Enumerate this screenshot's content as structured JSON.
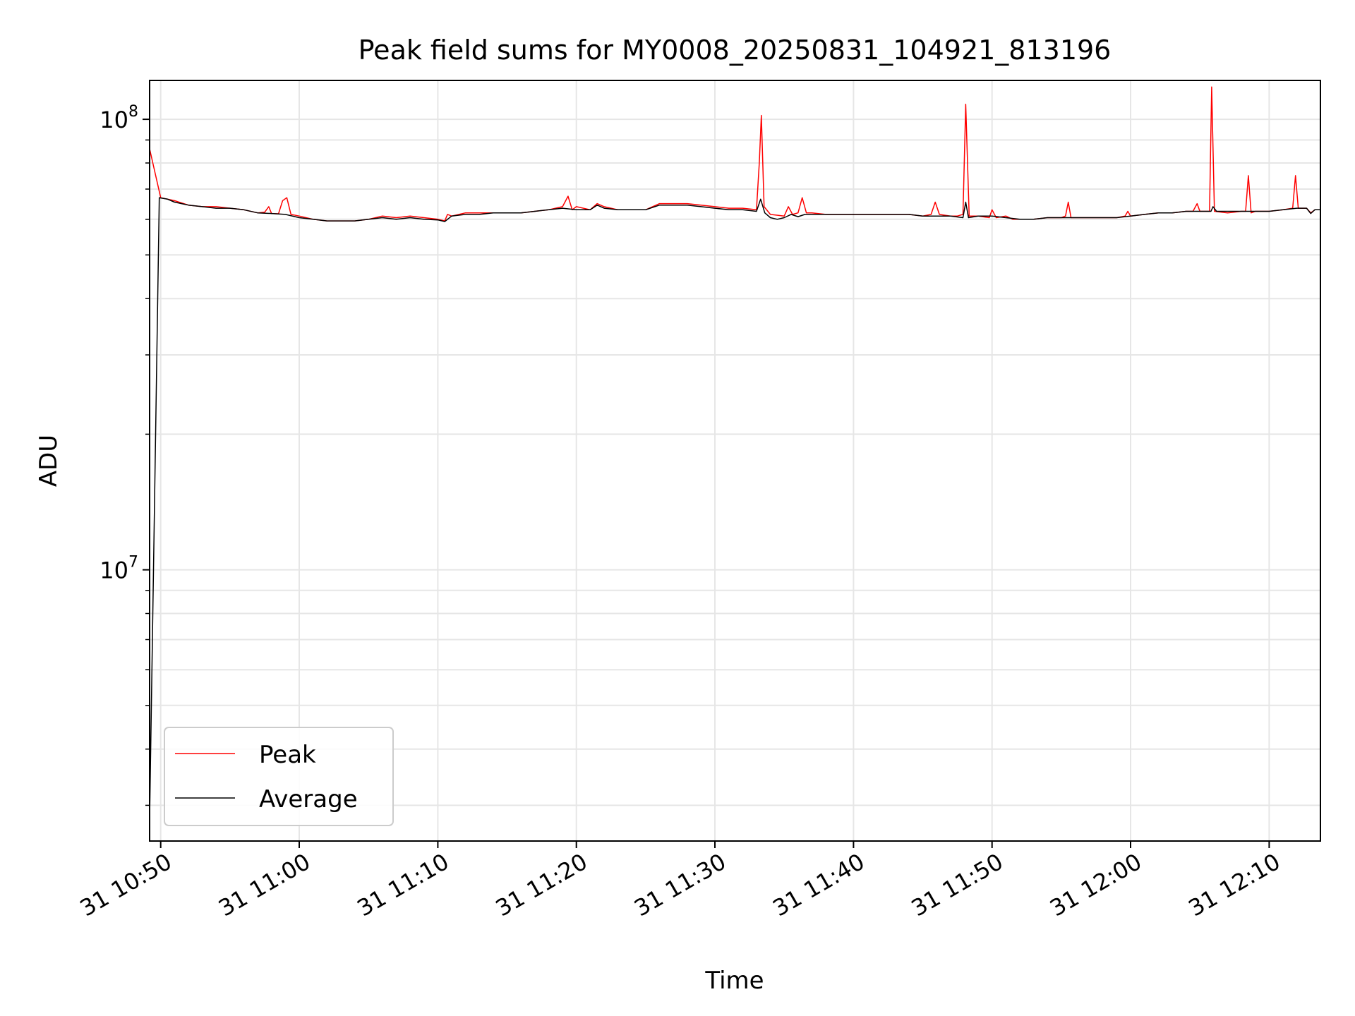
{
  "chart_data": {
    "type": "line",
    "title": "Peak field sums for MY0008_20250831_104921_813196",
    "xlabel": "Time",
    "ylabel": "ADU",
    "yscale": "log",
    "grid": true,
    "legend_placement": "lower-left",
    "xlim_minutes": [
      -0.8,
      83.7
    ],
    "ylim": [
      2500000,
      122000000
    ],
    "x_ticks": [
      {
        "minute": 0,
        "label": "31 10:50"
      },
      {
        "minute": 10,
        "label": "31 11:00"
      },
      {
        "minute": 20,
        "label": "31 11:10"
      },
      {
        "minute": 30,
        "label": "31 11:20"
      },
      {
        "minute": 40,
        "label": "31 11:30"
      },
      {
        "minute": 50,
        "label": "31 11:40"
      },
      {
        "minute": 60,
        "label": "31 11:50"
      },
      {
        "minute": 70,
        "label": "31 12:00"
      },
      {
        "minute": 80,
        "label": "31 12:10"
      }
    ],
    "y_major_ticks": [
      {
        "value": 10000000,
        "base": "10",
        "exp": "7"
      },
      {
        "value": 100000000,
        "base": "10",
        "exp": "8"
      }
    ],
    "y_minor_ticks": [
      3000000,
      4000000,
      5000000,
      6000000,
      7000000,
      8000000,
      9000000,
      20000000,
      30000000,
      40000000,
      50000000,
      60000000,
      70000000,
      80000000,
      90000000
    ],
    "series": [
      {
        "name": "Peak",
        "color": "#ff0000",
        "points": [
          [
            -0.8,
            86000000
          ],
          [
            0.0,
            67000000
          ],
          [
            1.0,
            66000000
          ],
          [
            2.0,
            64500000
          ],
          [
            3.0,
            64000000
          ],
          [
            4.0,
            64000000
          ],
          [
            5.0,
            63500000
          ],
          [
            6.0,
            63000000
          ],
          [
            7.0,
            62000000
          ],
          [
            7.5,
            62200000
          ],
          [
            7.8,
            64000000
          ],
          [
            8.0,
            61800000
          ],
          [
            8.5,
            61700000
          ],
          [
            8.8,
            66000000
          ],
          [
            9.1,
            67000000
          ],
          [
            9.4,
            61500000
          ],
          [
            10.0,
            61000000
          ],
          [
            11.0,
            60000000
          ],
          [
            12.0,
            59500000
          ],
          [
            13.0,
            59500000
          ],
          [
            14.0,
            59500000
          ],
          [
            15.0,
            60000000
          ],
          [
            16.0,
            61000000
          ],
          [
            17.0,
            60500000
          ],
          [
            18.0,
            61000000
          ],
          [
            19.0,
            60500000
          ],
          [
            20.0,
            60000000
          ],
          [
            20.5,
            59500000
          ],
          [
            20.7,
            61500000
          ],
          [
            21.0,
            61000000
          ],
          [
            22.0,
            62000000
          ],
          [
            23.0,
            62000000
          ],
          [
            24.0,
            62000000
          ],
          [
            25.0,
            62000000
          ],
          [
            26.0,
            62000000
          ],
          [
            27.0,
            62500000
          ],
          [
            28.0,
            63000000
          ],
          [
            29.0,
            64000000
          ],
          [
            29.4,
            67500000
          ],
          [
            29.7,
            63000000
          ],
          [
            30.0,
            64000000
          ],
          [
            31.0,
            63000000
          ],
          [
            31.5,
            65000000
          ],
          [
            32.0,
            64000000
          ],
          [
            33.0,
            63000000
          ],
          [
            34.0,
            63000000
          ],
          [
            35.0,
            63000000
          ],
          [
            36.0,
            65000000
          ],
          [
            37.0,
            65000000
          ],
          [
            38.0,
            65000000
          ],
          [
            39.0,
            64500000
          ],
          [
            40.0,
            64000000
          ],
          [
            41.0,
            63500000
          ],
          [
            42.0,
            63500000
          ],
          [
            43.0,
            63000000
          ],
          [
            43.2,
            80000000
          ],
          [
            43.35,
            102000000
          ],
          [
            43.55,
            64000000
          ],
          [
            44.0,
            61500000
          ],
          [
            45.0,
            61000000
          ],
          [
            45.3,
            64000000
          ],
          [
            45.6,
            61500000
          ],
          [
            46.0,
            62000000
          ],
          [
            46.3,
            67000000
          ],
          [
            46.6,
            62000000
          ],
          [
            47.0,
            62000000
          ],
          [
            48.0,
            61500000
          ],
          [
            49.0,
            61500000
          ],
          [
            50.0,
            61500000
          ],
          [
            51.0,
            61500000
          ],
          [
            52.0,
            61500000
          ],
          [
            53.0,
            61500000
          ],
          [
            54.0,
            61500000
          ],
          [
            55.0,
            61000000
          ],
          [
            55.6,
            61500000
          ],
          [
            55.9,
            65500000
          ],
          [
            56.2,
            61500000
          ],
          [
            57.0,
            61000000
          ],
          [
            57.5,
            61000000
          ],
          [
            57.9,
            61500000
          ],
          [
            58.1,
            108000000
          ],
          [
            58.35,
            61000000
          ],
          [
            59.0,
            61000000
          ],
          [
            59.8,
            60500000
          ],
          [
            60.0,
            63000000
          ],
          [
            60.3,
            60500000
          ],
          [
            61.0,
            61000000
          ],
          [
            61.5,
            60000000
          ],
          [
            62.0,
            60000000
          ],
          [
            63.0,
            60000000
          ],
          [
            64.0,
            60500000
          ],
          [
            65.0,
            60500000
          ],
          [
            65.3,
            61000000
          ],
          [
            65.5,
            65500000
          ],
          [
            65.7,
            60500000
          ],
          [
            66.0,
            60500000
          ],
          [
            67.0,
            60500000
          ],
          [
            68.0,
            60500000
          ],
          [
            69.0,
            60500000
          ],
          [
            69.6,
            61000000
          ],
          [
            69.8,
            62500000
          ],
          [
            70.0,
            61000000
          ],
          [
            71.0,
            61500000
          ],
          [
            72.0,
            62000000
          ],
          [
            73.0,
            62000000
          ],
          [
            74.0,
            62500000
          ],
          [
            74.5,
            62500000
          ],
          [
            74.8,
            65000000
          ],
          [
            75.0,
            62500000
          ],
          [
            75.7,
            62500000
          ],
          [
            75.85,
            118000000
          ],
          [
            76.05,
            62500000
          ],
          [
            77.0,
            62000000
          ],
          [
            78.0,
            62500000
          ],
          [
            78.3,
            62500000
          ],
          [
            78.5,
            75000000
          ],
          [
            78.7,
            62000000
          ],
          [
            79.0,
            62500000
          ],
          [
            80.0,
            62500000
          ],
          [
            81.0,
            63000000
          ],
          [
            81.7,
            63500000
          ],
          [
            81.9,
            75000000
          ],
          [
            82.1,
            63500000
          ],
          [
            82.7,
            63500000
          ],
          [
            83.0,
            62000000
          ],
          [
            83.3,
            63000000
          ],
          [
            83.7,
            63000000
          ]
        ]
      },
      {
        "name": "Average",
        "color": "#000000",
        "points": [
          [
            -0.8,
            2800000
          ],
          [
            -0.1,
            67000000
          ],
          [
            0.5,
            66500000
          ],
          [
            1.0,
            65500000
          ],
          [
            2.0,
            64500000
          ],
          [
            3.0,
            64000000
          ],
          [
            4.0,
            63500000
          ],
          [
            5.0,
            63500000
          ],
          [
            6.0,
            63000000
          ],
          [
            7.0,
            62000000
          ],
          [
            8.0,
            61800000
          ],
          [
            9.0,
            61500000
          ],
          [
            10.0,
            60500000
          ],
          [
            11.0,
            60000000
          ],
          [
            12.0,
            59500000
          ],
          [
            13.0,
            59500000
          ],
          [
            14.0,
            59500000
          ],
          [
            15.0,
            60000000
          ],
          [
            16.0,
            60500000
          ],
          [
            17.0,
            60000000
          ],
          [
            18.0,
            60500000
          ],
          [
            19.0,
            60000000
          ],
          [
            20.0,
            59800000
          ],
          [
            20.5,
            59300000
          ],
          [
            21.0,
            61000000
          ],
          [
            22.0,
            61500000
          ],
          [
            23.0,
            61500000
          ],
          [
            24.0,
            62000000
          ],
          [
            25.0,
            62000000
          ],
          [
            26.0,
            62000000
          ],
          [
            27.0,
            62500000
          ],
          [
            28.0,
            63000000
          ],
          [
            29.0,
            63500000
          ],
          [
            30.0,
            63000000
          ],
          [
            31.0,
            63000000
          ],
          [
            31.5,
            64500000
          ],
          [
            32.0,
            63500000
          ],
          [
            33.0,
            63000000
          ],
          [
            34.0,
            63000000
          ],
          [
            35.0,
            63000000
          ],
          [
            36.0,
            64500000
          ],
          [
            37.0,
            64500000
          ],
          [
            38.0,
            64500000
          ],
          [
            39.0,
            64000000
          ],
          [
            40.0,
            63500000
          ],
          [
            41.0,
            63000000
          ],
          [
            42.0,
            63000000
          ],
          [
            43.0,
            62500000
          ],
          [
            43.3,
            66500000
          ],
          [
            43.6,
            62000000
          ],
          [
            44.0,
            60500000
          ],
          [
            44.5,
            60000000
          ],
          [
            45.0,
            60500000
          ],
          [
            45.5,
            61500000
          ],
          [
            46.0,
            60800000
          ],
          [
            46.5,
            61500000
          ],
          [
            47.0,
            61500000
          ],
          [
            48.0,
            61500000
          ],
          [
            49.0,
            61500000
          ],
          [
            50.0,
            61500000
          ],
          [
            51.0,
            61500000
          ],
          [
            52.0,
            61500000
          ],
          [
            53.0,
            61500000
          ],
          [
            54.0,
            61500000
          ],
          [
            55.0,
            61000000
          ],
          [
            56.0,
            61000000
          ],
          [
            57.0,
            61000000
          ],
          [
            57.9,
            60500000
          ],
          [
            58.1,
            65500000
          ],
          [
            58.3,
            60500000
          ],
          [
            59.0,
            61000000
          ],
          [
            60.0,
            61000000
          ],
          [
            61.0,
            60500000
          ],
          [
            62.0,
            60000000
          ],
          [
            63.0,
            60000000
          ],
          [
            64.0,
            60500000
          ],
          [
            65.0,
            60500000
          ],
          [
            66.0,
            60500000
          ],
          [
            67.0,
            60500000
          ],
          [
            68.0,
            60500000
          ],
          [
            69.0,
            60500000
          ],
          [
            70.0,
            61000000
          ],
          [
            71.0,
            61500000
          ],
          [
            72.0,
            62000000
          ],
          [
            73.0,
            62000000
          ],
          [
            74.0,
            62500000
          ],
          [
            75.0,
            62500000
          ],
          [
            75.8,
            62500000
          ],
          [
            75.95,
            64000000
          ],
          [
            76.2,
            62500000
          ],
          [
            77.0,
            62500000
          ],
          [
            78.0,
            62500000
          ],
          [
            79.0,
            62500000
          ],
          [
            80.0,
            62500000
          ],
          [
            81.0,
            63000000
          ],
          [
            82.0,
            63500000
          ],
          [
            82.7,
            63500000
          ],
          [
            83.0,
            61800000
          ],
          [
            83.3,
            63000000
          ],
          [
            83.7,
            63000000
          ]
        ]
      }
    ]
  }
}
